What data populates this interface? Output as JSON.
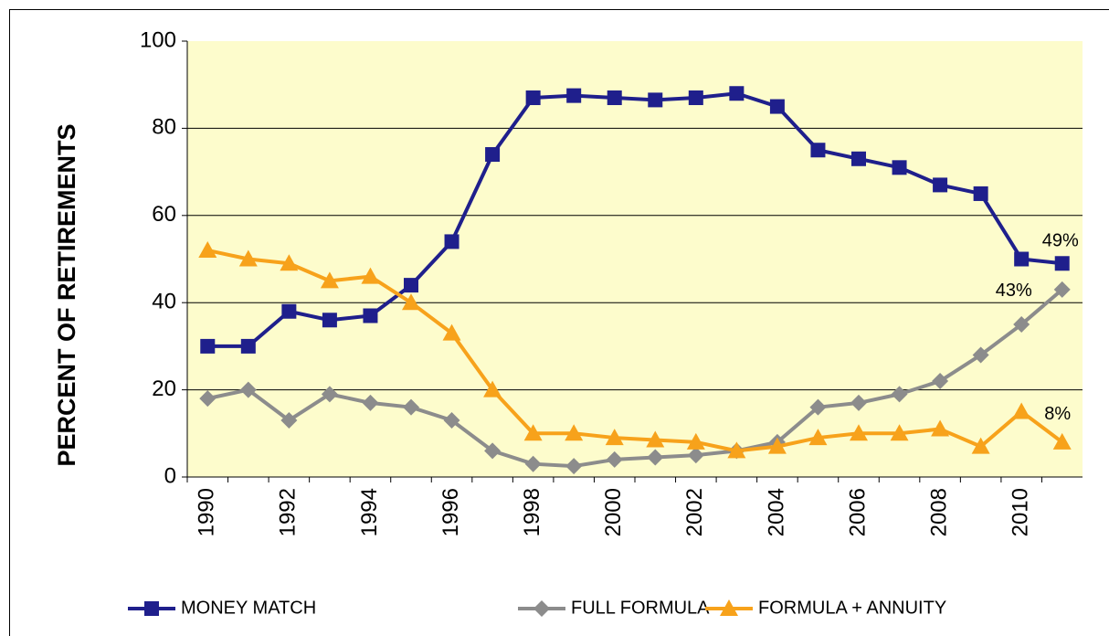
{
  "chart_data": {
    "type": "line",
    "y_label": "PERCENT OF RETIREMENTS",
    "categories": [
      "1990",
      null,
      "1992",
      null,
      "1994",
      null,
      "1996",
      null,
      "1998",
      null,
      "2000",
      null,
      "2002",
      null,
      "2004",
      null,
      "2006",
      null,
      "2008",
      null,
      "2010",
      null
    ],
    "series": [
      {
        "name": "MONEY MATCH",
        "color": "#1f1f8c",
        "marker": "square",
        "values": [
          30,
          30,
          38,
          36,
          37,
          44,
          54,
          74,
          87,
          87.5,
          87,
          86.5,
          87,
          88,
          85,
          75,
          73,
          71,
          67,
          65,
          50,
          49
        ],
        "value_labels": [
          null,
          null,
          null,
          null,
          null,
          null,
          null,
          null,
          null,
          null,
          null,
          null,
          null,
          null,
          null,
          null,
          null,
          null,
          null,
          null,
          null,
          "49%"
        ]
      },
      {
        "name": "FULL FORMULA",
        "color": "#8c8c8c",
        "marker": "diamond",
        "values": [
          18,
          20,
          13,
          19,
          17,
          16,
          13,
          6,
          3,
          2.5,
          4,
          4.5,
          5,
          6,
          8,
          16,
          17,
          19,
          22,
          28,
          35,
          43
        ],
        "value_labels": [
          null,
          null,
          null,
          null,
          null,
          null,
          null,
          null,
          null,
          null,
          null,
          null,
          null,
          null,
          null,
          null,
          null,
          null,
          null,
          null,
          null,
          "43%"
        ]
      },
      {
        "name": "FORMULA + ANNUITY",
        "color": "#f7a21b",
        "marker": "triangle",
        "values": [
          52,
          50,
          49,
          45,
          46,
          40,
          33,
          20,
          10,
          10,
          9,
          8.5,
          8,
          6,
          7,
          9,
          10,
          10,
          11,
          7,
          15,
          8
        ],
        "value_labels": [
          null,
          null,
          null,
          null,
          null,
          null,
          null,
          null,
          null,
          null,
          null,
          null,
          null,
          null,
          null,
          null,
          null,
          null,
          null,
          null,
          null,
          "8%"
        ]
      }
    ],
    "ylim": [
      0,
      100
    ],
    "yticks": [
      0,
      20,
      40,
      60,
      80,
      100
    ],
    "grid": true,
    "legend": "bottom"
  }
}
